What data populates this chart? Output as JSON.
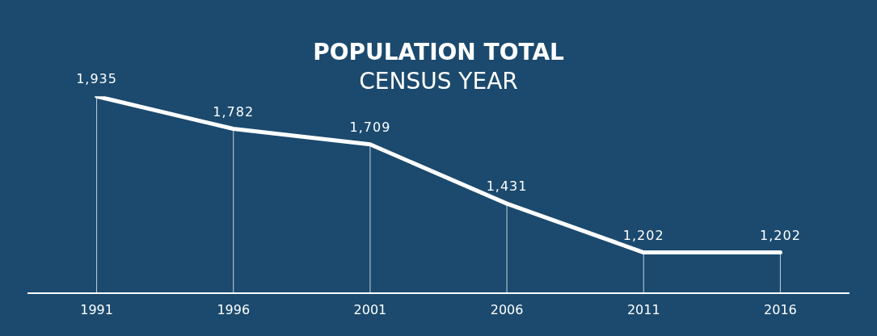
{
  "chart_data": {
    "type": "line",
    "title": "POPULATION TOTAL",
    "subtitle": "CENSUS YEAR",
    "categories": [
      "1991",
      "1996",
      "2001",
      "2006",
      "2011",
      "2016"
    ],
    "series": [
      {
        "color": "#ffffff",
        "values": [
          1935,
          1782,
          1709,
          1431,
          1202,
          1202
        ],
        "value_labels": [
          "1,935",
          "1,782",
          "1,709",
          "1,431",
          "1,202",
          "1,202"
        ]
      }
    ],
    "grid": "x",
    "legend": false,
    "marker": "none",
    "line_style": "solid"
  }
}
